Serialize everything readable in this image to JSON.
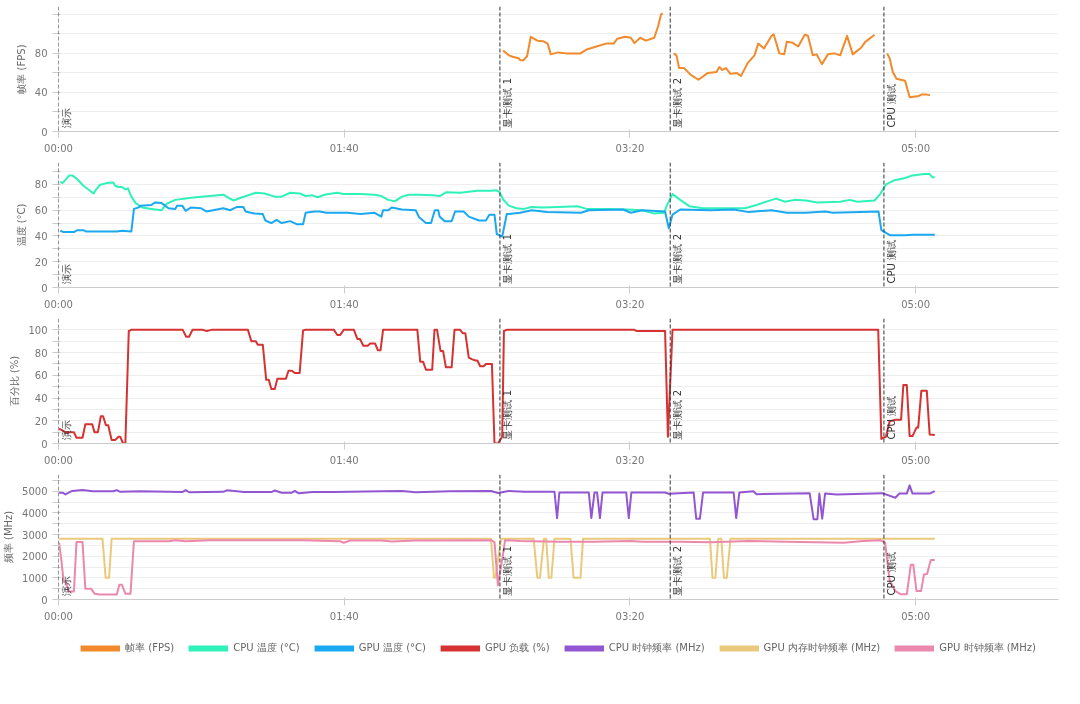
{
  "chart_data": [
    {
      "type": "line",
      "ylabel": "帧率 (FPS)",
      "xlim": [
        0,
        350
      ],
      "ylim": [
        0,
        128
      ],
      "grid": "y",
      "legend": "bottom",
      "line_style": "solid",
      "xticks": [
        {
          "value": 0,
          "label": "00:00"
        },
        {
          "value": 100,
          "label": "01:40"
        },
        {
          "value": 200,
          "label": "03:20"
        },
        {
          "value": 300,
          "label": "05:00"
        }
      ],
      "yticks": [
        0,
        {
          "value": 20,
          "label": null
        },
        40,
        {
          "value": 60,
          "label": null
        },
        80,
        {
          "value": 100,
          "label": null
        },
        {
          "value": 120,
          "label": null
        }
      ],
      "ref_lines": [
        {
          "axis": "x",
          "value": 0,
          "label": "演示",
          "color": "#333333",
          "line_style": "dashed"
        },
        {
          "axis": "x",
          "value": 154.5,
          "label": "显卡测试 1",
          "color": "#333333",
          "line_style": "dashed"
        },
        {
          "axis": "x",
          "value": 214.1,
          "label": "显卡测试 2",
          "color": "#333333",
          "line_style": "dashed"
        },
        {
          "axis": "x",
          "value": 288.9,
          "label": "CPU 测试",
          "color": "#333333",
          "line_style": "dashed"
        }
      ],
      "series": [
        {
          "name": "帧率 (FPS)",
          "color": "#f28a2c",
          "x": [
            155.6,
            157.6,
            159,
            161,
            161.6,
            162.7,
            164,
            165.3,
            167.6,
            169.6,
            171.2,
            172.3,
            174.9,
            177.6,
            182.7,
            184.9,
            188.3,
            191.6,
            194.3,
            195.6,
            198.3,
            200.3,
            201.6,
            203.6,
            205.6,
            208.5,
            209.9,
            210.9,
            211.5,
            213,
            215.3,
            216.3,
            217.2,
            218.9,
            221.3,
            224,
            227.3,
            230.3,
            231.3,
            232.3,
            233.6,
            235.2,
            237.3,
            238.9,
            241.2,
            243.6,
            244.9,
            246.9,
            249.6,
            250.3,
            252.3,
            254,
            254.9,
            256.9,
            258.9,
            261.2,
            262.3,
            264,
            265.3,
            267.2,
            269.3,
            271.6,
            273.6,
            276,
            278,
            281,
            282.3,
            285.6,
            288,
            290,
            290.9,
            292,
            293.3,
            296.3,
            297.9,
            300.7,
            302.3,
            303.6,
            305
          ],
          "values": [
            83,
            78,
            76.5,
            75,
            73,
            73,
            77,
            97,
            93,
            92.5,
            90,
            79,
            81,
            80,
            80,
            84,
            87,
            90,
            90,
            95,
            97,
            96,
            90.5,
            96,
            93,
            96,
            108,
            120,
            121,
            null,
            80,
            78,
            65,
            65,
            58,
            53,
            60,
            61,
            66,
            63,
            65,
            59,
            60,
            57,
            70,
            78,
            90,
            85,
            98,
            99.5,
            80,
            79,
            92,
            91,
            87,
            99,
            98,
            78,
            79,
            69,
            79,
            80,
            78,
            98,
            79,
            86,
            91.5,
            99,
            null,
            80,
            75,
            61,
            54,
            52,
            35,
            36,
            38,
            38,
            37
          ]
        }
      ]
    },
    {
      "type": "line",
      "ylabel": "温度 (°C)",
      "xlim": [
        0,
        350
      ],
      "ylim": [
        0,
        97
      ],
      "grid": "y",
      "legend": "bottom",
      "line_style": "solid",
      "xticks": [
        {
          "value": 0,
          "label": "00:00"
        },
        {
          "value": 100,
          "label": "01:40"
        },
        {
          "value": 200,
          "label": "03:20"
        },
        {
          "value": 300,
          "label": "05:00"
        }
      ],
      "yticks": [
        0,
        {
          "value": 10,
          "label": null
        },
        20,
        {
          "value": 30,
          "label": null
        },
        40,
        {
          "value": 50,
          "label": null
        },
        60,
        {
          "value": 70,
          "label": null
        },
        80,
        {
          "value": 90,
          "label": null
        }
      ],
      "ref_lines": [
        {
          "axis": "x",
          "value": 0,
          "label": "演示",
          "color": "#333333",
          "line_style": "dashed"
        },
        {
          "axis": "x",
          "value": 154.5,
          "label": "显卡测试 1",
          "color": "#333333",
          "line_style": "dashed"
        },
        {
          "axis": "x",
          "value": 214.1,
          "label": "显卡测试 2",
          "color": "#333333",
          "line_style": "dashed"
        },
        {
          "axis": "x",
          "value": 288.9,
          "label": "CPU 测试",
          "color": "#333333",
          "line_style": "dashed"
        }
      ],
      "series": [
        {
          "name": "CPU 温度 (°C)",
          "color": "#2ff2b9",
          "x": [
            0.6,
            1.4,
            3.8,
            4.8,
            6.6,
            8.7,
            10.8,
            12.3,
            13,
            14.4,
            16.8,
            19.2,
            19.8,
            21,
            22.2,
            23.4,
            24.3,
            25.5,
            27,
            29.4,
            32.5,
            36.1,
            37.9,
            40.9,
            44.5,
            48.1,
            52.9,
            57.7,
            59.5,
            61.3,
            64.3,
            69.1,
            72.1,
            75.7,
            78.1,
            81.1,
            84.4,
            86.5,
            88.9,
            90.7,
            93.1,
            97.4,
            99.8,
            105.8,
            110.6,
            113,
            115.4,
            117.8,
            120.2,
            122.6,
            126.2,
            131,
            133.4,
            135.8,
            140.6,
            146.6,
            151.4,
            153.2,
            154.4,
            155.6,
            157.6,
            160.3,
            162.9,
            165.6,
            169.6,
            174.9,
            181.6,
            184.9,
            192.3,
            198.9,
            204.3,
            208.3,
            212,
            212.9,
            214.9,
            217.6,
            220.9,
            225.6,
            232.3,
            240.3,
            244.3,
            248.3,
            251.2,
            254.3,
            257.6,
            261.6,
            265.6,
            273.6,
            276.9,
            279.6,
            285.6,
            287.6,
            289.6,
            292.3,
            296.3,
            299,
            302.9,
            304.9,
            305.9,
            306.7
          ],
          "values": [
            82,
            81,
            87,
            87,
            84,
            79,
            75.5,
            73,
            75.5,
            79.5,
            81,
            81.5,
            79,
            78,
            78,
            76,
            77,
            70.5,
            65.5,
            62,
            61,
            60,
            65,
            68,
            69,
            70,
            71,
            72,
            69.5,
            67.5,
            70,
            73.5,
            73,
            70.5,
            70.5,
            73.5,
            73,
            71,
            71.5,
            70,
            72,
            73.5,
            72.5,
            72.5,
            72,
            71,
            68,
            67,
            70.5,
            72,
            72,
            71.5,
            71,
            74,
            73.5,
            75,
            75,
            75.5,
            74,
            68.5,
            63.5,
            61.5,
            61,
            62.5,
            62,
            62.5,
            63,
            61,
            61,
            60.5,
            60,
            57.5,
            58,
            63.5,
            72.5,
            68,
            63,
            61.5,
            61.5,
            61.5,
            64,
            67,
            69,
            66.5,
            68,
            67.5,
            66,
            66.5,
            68,
            66.5,
            67.5,
            72.5,
            80,
            83,
            85,
            87,
            88,
            88,
            85.5,
            85.5
          ]
        },
        {
          "name": "GPU 温度 (°C)",
          "color": "#1aa9f1",
          "x": [
            0.6,
            1.8,
            5.4,
            6.6,
            8.7,
            9.6,
            20.4,
            22.2,
            25.5,
            26.4,
            27.9,
            28.8,
            32.5,
            33.7,
            36.1,
            38.5,
            40.9,
            41.5,
            43.3,
            44.5,
            46.3,
            49.9,
            51.7,
            54.1,
            57.7,
            60.1,
            62.5,
            64.7,
            65.5,
            68.5,
            71.5,
            72.4,
            74.5,
            76.3,
            78.1,
            81.1,
            83.5,
            85.6,
            86.5,
            89.5,
            91.3,
            93.8,
            97.4,
            101,
            105.8,
            110.6,
            113,
            113.6,
            115.4,
            116.6,
            120.2,
            125,
            126.2,
            128.6,
            130.4,
            131.7,
            132.9,
            133.4,
            135.2,
            137.6,
            138.8,
            141.8,
            143.6,
            147.2,
            149.6,
            150.8,
            152.6,
            153.4,
            155.3,
            156.9,
            157.6,
            161.6,
            165.6,
            171,
            182.9,
            185.6,
            197.6,
            200.3,
            204.3,
            212.3,
            213.6,
            214.9,
            217.6,
            228.3,
            236.3,
            241.6,
            249.6,
            254.9,
            261.6,
            268.3,
            271,
            287,
            288,
            291.1,
            296.3,
            299,
            306.7
          ],
          "values": [
            44,
            43,
            43,
            44.5,
            44.5,
            43.5,
            43.5,
            44,
            43.5,
            61,
            62,
            63.5,
            64,
            66,
            65.5,
            61.5,
            61,
            63.5,
            63.5,
            59.5,
            62,
            61.5,
            59,
            60,
            61.5,
            60,
            62.5,
            62.5,
            59,
            57.5,
            57,
            52,
            50,
            52.5,
            50,
            51.5,
            49,
            49,
            58,
            59,
            59,
            58,
            58,
            58,
            57,
            58,
            55,
            60,
            60,
            62,
            60.5,
            60,
            54.5,
            50,
            50,
            60,
            60,
            55,
            51.5,
            51.5,
            59,
            59,
            55,
            52,
            52,
            56.5,
            56.5,
            41.5,
            39.5,
            57,
            57,
            58,
            60,
            58.5,
            58,
            60,
            60.5,
            58,
            60,
            59,
            46,
            56.5,
            60.5,
            60,
            60.5,
            58.5,
            60,
            58,
            58,
            59,
            58,
            59,
            44.5,
            40.5,
            40.5,
            41,
            41
          ]
        }
      ]
    },
    {
      "type": "line",
      "ylabel": "百分比 (%)",
      "xlim": [
        0,
        350
      ],
      "ylim": [
        0,
        110
      ],
      "grid": "y",
      "legend": "bottom",
      "line_style": "solid",
      "xticks": [
        {
          "value": 0,
          "label": "00:00"
        },
        {
          "value": 100,
          "label": "01:40"
        },
        {
          "value": 200,
          "label": "03:20"
        },
        {
          "value": 300,
          "label": "05:00"
        }
      ],
      "yticks": [
        0,
        {
          "value": 10,
          "label": null
        },
        20,
        {
          "value": 30,
          "label": null
        },
        40,
        {
          "value": 50,
          "label": null
        },
        60,
        {
          "value": 70,
          "label": null
        },
        80,
        {
          "value": 90,
          "label": null
        },
        100
      ],
      "ref_lines": [
        {
          "axis": "x",
          "value": 0,
          "label": "演示",
          "color": "#333333",
          "line_style": "dashed"
        },
        {
          "axis": "x",
          "value": 154.5,
          "label": "显卡测试 1",
          "color": "#333333",
          "line_style": "dashed"
        },
        {
          "axis": "x",
          "value": 214.1,
          "label": "显卡测试 2",
          "color": "#333333",
          "line_style": "dashed"
        },
        {
          "axis": "x",
          "value": 288.9,
          "label": "CPU 测试",
          "color": "#333333",
          "line_style": "dashed"
        }
      ],
      "series": [
        {
          "name": "GPU 负载 (%)",
          "color": "#d63232",
          "x": [
            0.2,
            2.4,
            5.4,
            6.3,
            8.4,
            9.4,
            11.8,
            12.6,
            13.8,
            14.8,
            15.6,
            16.6,
            17.4,
            18.6,
            19.8,
            21,
            21.6,
            22.6,
            23.4,
            24.6,
            25.5,
            43.5,
            44.7,
            45.7,
            46.9,
            50.5,
            51.9,
            53.5,
            66.3,
            67.5,
            69.1,
            69.7,
            71.5,
            72.7,
            73.6,
            74.5,
            75.7,
            76.6,
            79.6,
            80.5,
            81.7,
            82.7,
            84.4,
            85.6,
            86.3,
            96.4,
            97.6,
            98.6,
            99.8,
            103.4,
            104.6,
            105.5,
            106.7,
            108.2,
            109.1,
            110.8,
            111.8,
            112.7,
            113.6,
            125.6,
            126.6,
            127.6,
            128.6,
            130.8,
            131.6,
            132.5,
            133.7,
            134.6,
            135.6,
            137.6,
            138.6,
            140.6,
            141.5,
            142.4,
            143.6,
            144.8,
            146,
            146.6,
            147.6,
            148.8,
            149.6,
            151.7,
            152.6,
            153.8,
            155.3,
            155.9,
            156.9,
            201.6,
            202.3,
            212.3,
            213.3,
            214.9,
            286.9,
            288,
            289.6,
            290.9,
            292.9,
            294.9,
            295.7,
            296.9,
            297.9,
            298.9,
            300.3,
            300.9,
            302,
            303.9,
            304.9,
            306.7
          ],
          "values": [
            13,
            10,
            10,
            5,
            5,
            17,
            17,
            10,
            10,
            24,
            24,
            16,
            16,
            3,
            3,
            6,
            6,
            0,
            0,
            99,
            100,
            100,
            94,
            94,
            100,
            100,
            99,
            100,
            100,
            90,
            90,
            87,
            87,
            56,
            56,
            48,
            48,
            57,
            57,
            64,
            64,
            62,
            62,
            99.5,
            100,
            100,
            95.5,
            95.5,
            100,
            100,
            92,
            92,
            86,
            86,
            88,
            88,
            82,
            82,
            100,
            100,
            72,
            72,
            65,
            65,
            100,
            100,
            81.5,
            81.5,
            67,
            67,
            100,
            100,
            97,
            97,
            75.5,
            74,
            73,
            73,
            68,
            68,
            70,
            70,
            0,
            0,
            6,
            99,
            100,
            100,
            99,
            99,
            6,
            100,
            100,
            4,
            6,
            19.5,
            21,
            21,
            51.5,
            51.5,
            6.5,
            6.5,
            14,
            14,
            46.5,
            46.5,
            8,
            7.5
          ]
        }
      ]
    },
    {
      "type": "line",
      "ylabel": "频率 (MHz)",
      "xlim": [
        0,
        350
      ],
      "ylim": [
        0,
        5770
      ],
      "grid": "y",
      "legend": "bottom",
      "line_style": "solid",
      "xticks": [
        {
          "value": 0,
          "label": "00:00"
        },
        {
          "value": 100,
          "label": "01:40"
        },
        {
          "value": 200,
          "label": "03:20"
        },
        {
          "value": 300,
          "label": "05:00"
        }
      ],
      "yticks": [
        0,
        {
          "value": 500,
          "label": null
        },
        1000,
        {
          "value": 1500,
          "label": null
        },
        2000,
        {
          "value": 2500,
          "label": null
        },
        3000,
        {
          "value": 3500,
          "label": null
        },
        4000,
        {
          "value": 4500,
          "label": null
        },
        5000,
        {
          "value": 5500,
          "label": null
        }
      ],
      "ref_lines": [
        {
          "axis": "x",
          "value": 0,
          "label": "演示",
          "color": "#333333",
          "line_style": "dashed"
        },
        {
          "axis": "x",
          "value": 154.5,
          "label": "显卡测试 1",
          "color": "#333333",
          "line_style": "dashed"
        },
        {
          "axis": "x",
          "value": 214.1,
          "label": "显卡测试 2",
          "color": "#333333",
          "line_style": "dashed"
        },
        {
          "axis": "x",
          "value": 288.9,
          "label": "CPU 测试",
          "color": "#333333",
          "line_style": "dashed"
        }
      ],
      "series": [
        {
          "name": "CPU 时钟频率 (MHz)",
          "color": "#9356d2",
          "x": [
            0.2,
            1.4,
            2.4,
            4.8,
            8.4,
            12,
            19.2,
            20.4,
            21.6,
            28.8,
            43.3,
            44.5,
            45.7,
            57.7,
            58.9,
            64.9,
            74.5,
            75.7,
            78.1,
            81.7,
            82.7,
            84.1,
            88.9,
            96.2,
            113,
            120.2,
            125,
            137,
            151.4,
            153.8,
            157.5,
            163,
            172.3,
            173.6,
            174.5,
            175.3,
            185.6,
            186.5,
            187.6,
            188.5,
            189.5,
            190.4,
            198.7,
            199.6,
            200.5,
            212.3,
            213.6,
            222.3,
            223.2,
            224.5,
            225.6,
            236.3,
            237.2,
            238.3,
            243.2,
            244.3,
            262.9,
            264.3,
            265.6,
            266.3,
            267.3,
            268.3,
            272.3,
            288.3,
            292.9,
            294.3,
            296.9,
            297.9,
            298.9,
            304.9,
            306.7
          ],
          "values": [
            4930,
            4930,
            4850,
            5010,
            5050,
            5000,
            5000,
            5050,
            4970,
            5000,
            4960,
            5050,
            4950,
            4970,
            5040,
            4960,
            4960,
            5030,
            4930,
            4930,
            5010,
            4900,
            4960,
            4960,
            5000,
            5010,
            4950,
            5000,
            5010,
            4920,
            5010,
            4970,
            4970,
            4970,
            3760,
            4940,
            4940,
            3760,
            4940,
            4940,
            3760,
            4940,
            4940,
            3760,
            4940,
            4940,
            4880,
            4940,
            3730,
            3730,
            4940,
            4940,
            3760,
            4940,
            5000,
            4860,
            4910,
            3700,
            3700,
            4890,
            3730,
            4890,
            4850,
            4910,
            4700,
            4890,
            4890,
            5270,
            4890,
            4890,
            5000
          ]
        },
        {
          "name": "GPU 内存时钟频率 (MHz)",
          "color": "#ebc97c",
          "x": [
            0.2,
            15.4,
            16.5,
            17.7,
            18.6,
            151.4,
            152.4,
            152.9,
            154.9,
            166.3,
            167.6,
            168.5,
            169.9,
            170.7,
            171.6,
            172.5,
            173.6,
            179.2,
            180.3,
            182.7,
            183.6,
            228,
            228.9,
            229.9,
            230.9,
            232,
            232.9,
            233.9,
            235.2,
            306.7
          ],
          "values": [
            2800,
            2800,
            1000,
            1000,
            2800,
            2800,
            1000,
            1000,
            2800,
            2800,
            1000,
            1000,
            2800,
            2800,
            1000,
            1000,
            2800,
            2800,
            1000,
            1000,
            2800,
            2800,
            1000,
            1000,
            2800,
            2800,
            1000,
            1000,
            2800,
            2800
          ]
        },
        {
          "name": "GPU 时钟频率 (MHz)",
          "color": "#ec87ad",
          "x": [
            0.2,
            1,
            1.8,
            2.6,
            3.6,
            5.4,
            6.3,
            8.4,
            9.4,
            11.4,
            12.6,
            14.4,
            20.4,
            21.3,
            22.2,
            23.4,
            25.2,
            26.4,
            38.5,
            40.9,
            44.5,
            52.9,
            85.3,
            98.6,
            99.8,
            102.2,
            113,
            116.6,
            125,
            151.4,
            152.6,
            153.8,
            155.6,
            156.3,
            161.6,
            174.9,
            186.9,
            200.3,
            204.3,
            217.6,
            228.3,
            241.6,
            254.9,
            274.9,
            281.6,
            287.6,
            289.3,
            290.9,
            292.9,
            294.9,
            296.9,
            298.3,
            299.2,
            300.3,
            301.9,
            302.9,
            304,
            305.3,
            306.7
          ],
          "values": [
            2620,
            1830,
            820,
            820,
            370,
            370,
            2650,
            2650,
            500,
            500,
            270,
            230,
            230,
            680,
            680,
            270,
            270,
            2690,
            2690,
            2740,
            2690,
            2740,
            2740,
            2690,
            2620,
            2720,
            2720,
            2680,
            2720,
            2740,
            2650,
            650,
            2100,
            2740,
            2700,
            2670,
            2670,
            2700,
            2670,
            2670,
            2640,
            2700,
            2670,
            2620,
            2700,
            2740,
            2620,
            880,
            390,
            240,
            240,
            1600,
            1600,
            390,
            390,
            1150,
            1180,
            1820,
            1820
          ]
        }
      ]
    }
  ]
}
